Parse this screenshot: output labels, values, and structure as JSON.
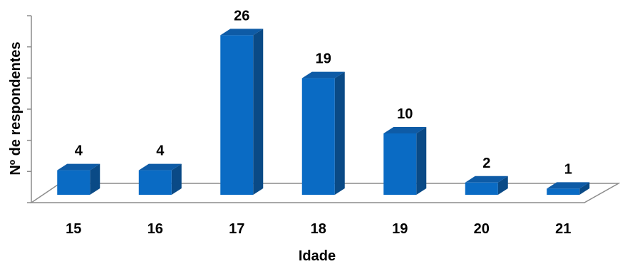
{
  "chart_data": {
    "type": "bar",
    "categories": [
      "15",
      "16",
      "17",
      "18",
      "19",
      "20",
      "21"
    ],
    "values": [
      4,
      4,
      26,
      19,
      10,
      2,
      1
    ],
    "data_labels": [
      "4",
      "4",
      "26",
      "19",
      "10",
      "2",
      "1"
    ],
    "title": "",
    "xlabel": "Idade",
    "ylabel": "Nº de respondentes",
    "ylim": [
      0,
      30
    ],
    "grid": false,
    "legend": "none",
    "style": "3d-column",
    "colors": {
      "bar_front": "#0A6BC4",
      "bar_top": "#0E5BA6",
      "bar_side": "#0A4A86",
      "floor": "#ffffff",
      "axis": "#8C8C8C"
    }
  }
}
